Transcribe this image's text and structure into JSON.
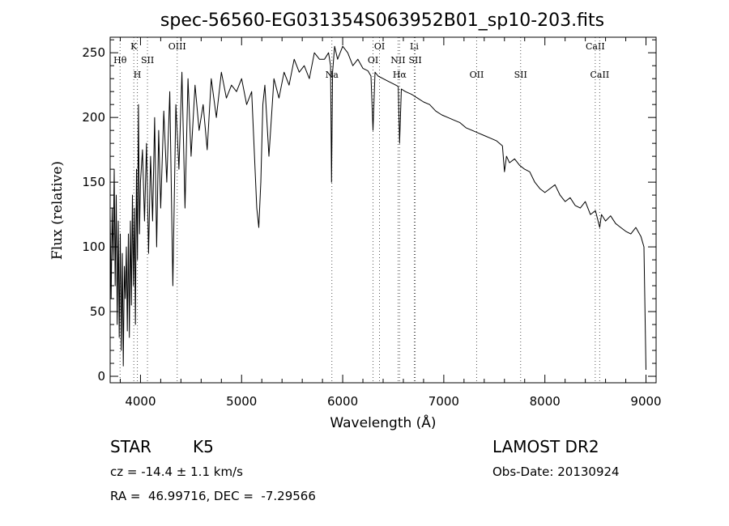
{
  "chart_data": {
    "type": "line",
    "title": "spec-56560-EG031354S063952B01_sp10-203.fits",
    "xlabel": "Wavelength (Å)",
    "ylabel": "Flux (relative)",
    "xlim": [
      3700,
      9100
    ],
    "ylim": [
      -5,
      262
    ],
    "xticks": [
      4000,
      5000,
      6000,
      7000,
      8000,
      9000
    ],
    "yticks": [
      0,
      50,
      100,
      150,
      200,
      250
    ],
    "grid": false,
    "series": [
      {
        "values": {
          "x": [
            3700,
            3710,
            3720,
            3730,
            3740,
            3750,
            3760,
            3770,
            3780,
            3790,
            3800,
            3810,
            3820,
            3830,
            3840,
            3850,
            3860,
            3870,
            3880,
            3890,
            3900,
            3910,
            3920,
            3930,
            3940,
            3950,
            3960,
            3970,
            3980,
            3990,
            4000,
            4020,
            4040,
            4060,
            4080,
            4100,
            4120,
            4140,
            4160,
            4180,
            4200,
            4230,
            4260,
            4290,
            4320,
            4350,
            4380,
            4410,
            4440,
            4470,
            4500,
            4540,
            4580,
            4620,
            4660,
            4700,
            4750,
            4800,
            4850,
            4900,
            4950,
            5000,
            5050,
            5100,
            5150,
            5170,
            5190,
            5210,
            5230,
            5270,
            5320,
            5370,
            5420,
            5470,
            5520,
            5570,
            5620,
            5670,
            5720,
            5770,
            5820,
            5860,
            5880,
            5890,
            5900,
            5920,
            5950,
            6000,
            6050,
            6100,
            6150,
            6200,
            6250,
            6280,
            6300,
            6320,
            6350,
            6400,
            6450,
            6500,
            6550,
            6563,
            6580,
            6620,
            6680,
            6740,
            6800,
            6860,
            6920,
            6980,
            7040,
            7100,
            7160,
            7220,
            7280,
            7340,
            7400,
            7460,
            7520,
            7580,
            7600,
            7620,
            7650,
            7700,
            7750,
            7800,
            7850,
            7900,
            7950,
            8000,
            8050,
            8100,
            8150,
            8200,
            8250,
            8300,
            8350,
            8400,
            8450,
            8500,
            8542,
            8560,
            8600,
            8650,
            8700,
            8750,
            8800,
            8850,
            8900,
            8950,
            8980,
            8990,
            9000
          ],
          "y": [
            125,
            60,
            130,
            90,
            160,
            70,
            140,
            40,
            120,
            30,
            110,
            20,
            95,
            8,
            85,
            60,
            100,
            35,
            110,
            30,
            120,
            55,
            140,
            70,
            130,
            40,
            160,
            90,
            210,
            110,
            150,
            175,
            120,
            180,
            95,
            170,
            120,
            200,
            100,
            190,
            130,
            205,
            150,
            220,
            70,
            210,
            160,
            235,
            130,
            230,
            170,
            225,
            190,
            210,
            175,
            230,
            200,
            235,
            215,
            225,
            220,
            230,
            210,
            220,
            130,
            115,
            150,
            210,
            225,
            170,
            230,
            215,
            235,
            225,
            245,
            235,
            240,
            230,
            250,
            245,
            245,
            250,
            240,
            150,
            235,
            255,
            245,
            255,
            250,
            240,
            245,
            238,
            236,
            232,
            190,
            235,
            232,
            230,
            228,
            226,
            224,
            180,
            222,
            220,
            218,
            215,
            212,
            210,
            205,
            202,
            200,
            198,
            196,
            192,
            190,
            188,
            186,
            184,
            182,
            178,
            158,
            170,
            165,
            168,
            163,
            160,
            158,
            150,
            145,
            142,
            145,
            148,
            140,
            135,
            138,
            132,
            130,
            135,
            125,
            128,
            115,
            125,
            120,
            124,
            118,
            115,
            112,
            110,
            115,
            108,
            100,
            50,
            5
          ]
        }
      }
    ],
    "line_markers": [
      {
        "label": "Hθ",
        "x": 3798,
        "row": 1
      },
      {
        "label": "K",
        "x": 3934,
        "row": 0
      },
      {
        "label": "H",
        "x": 3969,
        "row": 2
      },
      {
        "label": "SII",
        "x": 4069,
        "row": 1
      },
      {
        "label": "OIII",
        "x": 4363,
        "row": 0
      },
      {
        "label": "Na",
        "x": 5893,
        "row": 2
      },
      {
        "label": "OI",
        "x": 6300,
        "row": 1
      },
      {
        "label": "OI",
        "x": 6364,
        "row": 0
      },
      {
        "label": "NII",
        "x": 6548,
        "row": 1
      },
      {
        "label": "Hα",
        "x": 6563,
        "row": 2
      },
      {
        "label": "Li",
        "x": 6708,
        "row": 0
      },
      {
        "label": "SII",
        "x": 6717,
        "row": 1
      },
      {
        "label": "OII",
        "x": 7325,
        "row": 2
      },
      {
        "label": "SII",
        "x": 7760,
        "row": 2
      },
      {
        "label": "CaII",
        "x": 8498,
        "row": 0
      },
      {
        "label": "CaII",
        "x": 8542,
        "row": 2
      }
    ],
    "annotations": {
      "class": "STAR",
      "subclass": "K5",
      "redshift": "cz = -14.4 ± 1.1 km/s",
      "coords": "RA =  46.99716, DEC =  -7.29566",
      "survey": "LAMOST DR2",
      "obs_date": "Obs-Date: 20130924"
    }
  }
}
